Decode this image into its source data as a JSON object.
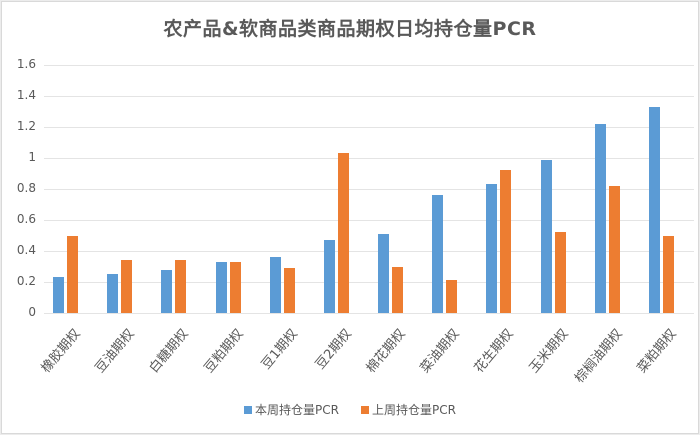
{
  "chart_data": {
    "type": "bar",
    "title": "农产品&软商品类商品期权日均持仓量PCR",
    "xlabel": "",
    "ylabel": "",
    "ylim": [
      0,
      1.6
    ],
    "yticks": [
      "0",
      "0.2",
      "0.4",
      "0.6",
      "0.8",
      "1",
      "1.2",
      "1.4",
      "1.6"
    ],
    "grid": true,
    "legend_position": "bottom",
    "categories": [
      "橡胶期权",
      "豆油期权",
      "白糖期权",
      "豆粕期权",
      "豆1期权",
      "豆2期权",
      "棉花期权",
      "菜油期权",
      "花生期权",
      "玉米期权",
      "棕榈油期权",
      "菜粕期权"
    ],
    "series": [
      {
        "name": "本周持仓量PCR",
        "color": "#5b9bd5",
        "values": [
          0.23,
          0.25,
          0.28,
          0.33,
          0.36,
          0.47,
          0.51,
          0.76,
          0.83,
          0.99,
          1.22,
          1.33
        ]
      },
      {
        "name": "上周持仓量PCR",
        "color": "#ed7d31",
        "values": [
          0.5,
          0.34,
          0.34,
          0.33,
          0.29,
          1.03,
          0.3,
          0.21,
          0.92,
          0.52,
          0.82,
          0.5
        ]
      }
    ]
  }
}
